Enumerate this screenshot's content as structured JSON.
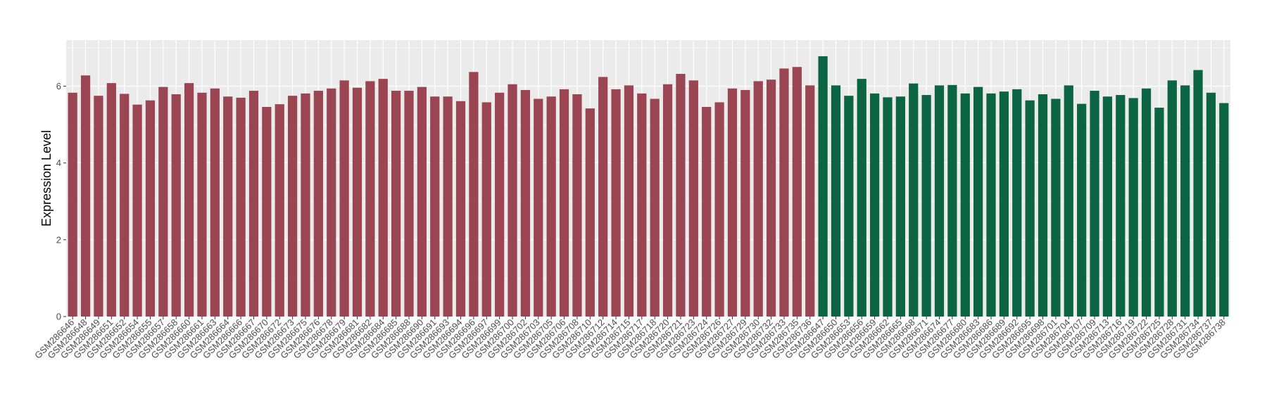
{
  "chart_data": {
    "type": "bar",
    "title": "",
    "xlabel": "",
    "ylabel": "Expression Level",
    "ylim": [
      0,
      7.2
    ],
    "yticks": [
      0,
      2,
      4,
      6
    ],
    "grid": true,
    "legend": "none",
    "colors": {
      "group1": "#9b4452",
      "group2": "#0b6444",
      "panel": "#ebebeb",
      "gridline": "#ffffff"
    },
    "categories": [
      "GSM286646",
      "GSM286648",
      "GSM286649",
      "GSM286651",
      "GSM286652",
      "GSM286654",
      "GSM286655",
      "GSM286657",
      "GSM286658",
      "GSM286660",
      "GSM286661",
      "GSM286663",
      "GSM286664",
      "GSM286666",
      "GSM286667",
      "GSM286670",
      "GSM286672",
      "GSM286673",
      "GSM286675",
      "GSM286676",
      "GSM286678",
      "GSM286679",
      "GSM286681",
      "GSM286682",
      "GSM286684",
      "GSM286685",
      "GSM286688",
      "GSM286690",
      "GSM286691",
      "GSM286693",
      "GSM286694",
      "GSM286696",
      "GSM286697",
      "GSM286699",
      "GSM286700",
      "GSM286702",
      "GSM286703",
      "GSM286705",
      "GSM286706",
      "GSM286708",
      "GSM286710",
      "GSM286712",
      "GSM286714",
      "GSM286715",
      "GSM286717",
      "GSM286718",
      "GSM286720",
      "GSM286721",
      "GSM286723",
      "GSM286724",
      "GSM286726",
      "GSM286727",
      "GSM286729",
      "GSM286730",
      "GSM286732",
      "GSM286733",
      "GSM286735",
      "GSM286736",
      "GSM286647",
      "GSM286650",
      "GSM286653",
      "GSM286656",
      "GSM286659",
      "GSM286662",
      "GSM286665",
      "GSM286668",
      "GSM286671",
      "GSM286674",
      "GSM286677",
      "GSM286680",
      "GSM286683",
      "GSM286686",
      "GSM286689",
      "GSM286692",
      "GSM286695",
      "GSM286698",
      "GSM286701",
      "GSM286704",
      "GSM286707",
      "GSM286709",
      "GSM286713",
      "GSM286716",
      "GSM286719",
      "GSM286722",
      "GSM286725",
      "GSM286728",
      "GSM286731",
      "GSM286734",
      "GSM286737",
      "GSM286738"
    ],
    "values": [
      5.83,
      6.28,
      5.75,
      6.08,
      5.8,
      5.52,
      5.63,
      5.98,
      5.79,
      6.08,
      5.83,
      5.94,
      5.73,
      5.7,
      5.88,
      5.46,
      5.53,
      5.75,
      5.81,
      5.88,
      5.94,
      6.15,
      5.96,
      6.13,
      6.19,
      5.88,
      5.88,
      5.98,
      5.73,
      5.73,
      5.61,
      6.37,
      5.58,
      5.83,
      6.05,
      5.9,
      5.67,
      5.73,
      5.92,
      5.79,
      5.42,
      6.24,
      5.92,
      6.02,
      5.81,
      5.67,
      6.05,
      6.32,
      6.15,
      5.46,
      5.58,
      5.94,
      5.9,
      6.13,
      6.17,
      6.46,
      6.5,
      6.02,
      6.78,
      6.02,
      5.75,
      6.19,
      5.81,
      5.71,
      5.73,
      6.07,
      5.77,
      6.02,
      6.03,
      5.81,
      5.98,
      5.81,
      5.86,
      5.92,
      5.63,
      5.79,
      5.67,
      6.02,
      5.54,
      5.88,
      5.73,
      5.77,
      5.69,
      5.94,
      5.44,
      6.15,
      6.02,
      6.42,
      5.83,
      5.56
    ],
    "group_sizes": [
      58,
      32
    ]
  }
}
